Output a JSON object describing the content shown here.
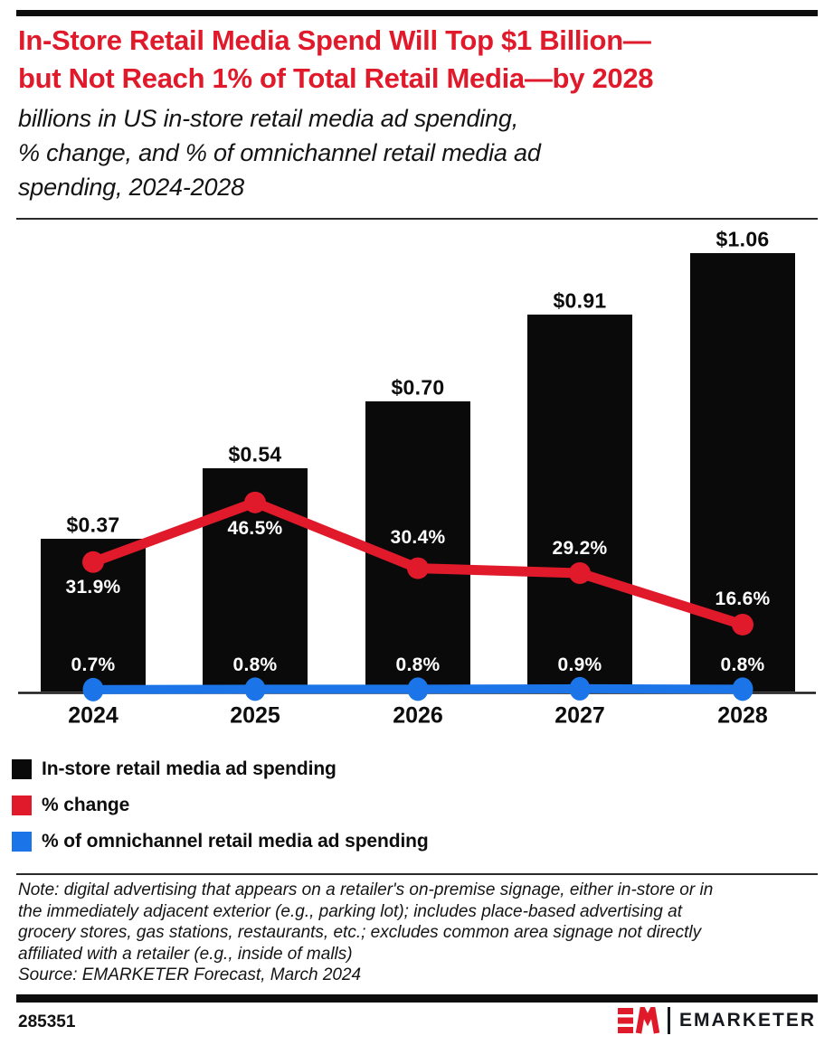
{
  "header": {
    "title_line1": "In-Store Retail Media Spend Will Top $1 Billion—",
    "title_line2": "but Not Reach 1% of Total Retail Media—by 2028",
    "subtitle_line1": "billions in US in-store retail media ad spending,",
    "subtitle_line2": "% change, and % of omnichannel retail media ad",
    "subtitle_line3": "spending, 2024-2028"
  },
  "chart_data": {
    "type": "bar",
    "combo": "bar + two lines",
    "title": "In-Store Retail Media Spend Will Top $1 Billion—but Not Reach 1% of Total Retail Media—by 2028",
    "categories": [
      "2024",
      "2025",
      "2026",
      "2027",
      "2028"
    ],
    "series": [
      {
        "name": "In-store retail media ad spending",
        "render": "bar",
        "unit": "billions USD",
        "values": [
          0.37,
          0.54,
          0.7,
          0.91,
          1.06
        ],
        "labels": [
          "$0.37",
          "$0.54",
          "$0.70",
          "$0.91",
          "$1.06"
        ],
        "color": "#0a0a0a"
      },
      {
        "name": "% change",
        "render": "line",
        "unit": "%",
        "values": [
          31.9,
          46.5,
          30.4,
          29.2,
          16.6
        ],
        "labels": [
          "31.9%",
          "46.5%",
          "30.4%",
          "29.2%",
          "16.6%"
        ],
        "color": "#e01a2b"
      },
      {
        "name": "% of omnichannel retail media ad spending",
        "render": "line",
        "unit": "%",
        "values": [
          0.7,
          0.8,
          0.8,
          0.9,
          0.8
        ],
        "labels": [
          "0.7%",
          "0.8%",
          "0.8%",
          "0.9%",
          "0.8%"
        ],
        "color": "#1b75e8"
      }
    ],
    "xlabel": "",
    "ylabel": "",
    "grid": false,
    "value_axis_labels_hidden": true,
    "legend_position": "below-chart-left"
  },
  "note": {
    "lines": [
      "Note: digital advertising that appears on a retailer's on-premise signage, either in-store or in",
      "the immediately adjacent exterior (e.g., parking lot); includes place-based advertising at",
      "grocery stores, gas stations, restaurants, etc.; excludes common area signage not directly",
      "affiliated with a retailer (e.g., inside of malls)"
    ],
    "source": "Source: EMARKETER Forecast, March 2024"
  },
  "footer": {
    "chart_id": "285351",
    "brand": "EMARKETER",
    "logo_monogram": "EM"
  },
  "colors": {
    "accent_red": "#e01a2b",
    "accent_blue": "#1b75e8",
    "bar_black": "#0a0a0a"
  }
}
